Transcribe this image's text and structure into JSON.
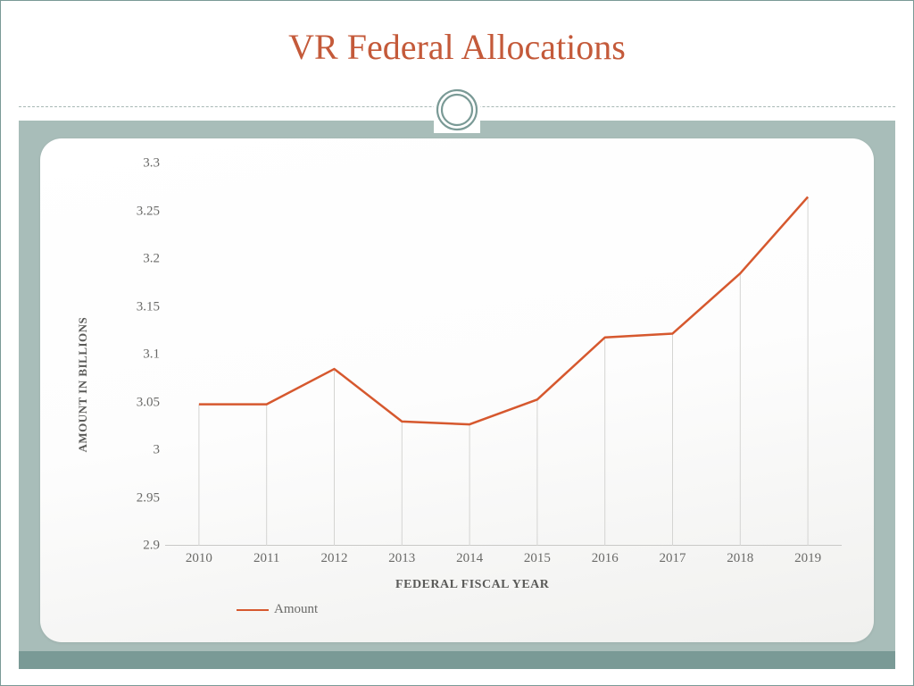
{
  "title": "VR Federal Allocations",
  "chart": {
    "type": "line",
    "x_axis_label": "FEDERAL FISCAL YEAR",
    "y_axis_label": "AMOUNT IN BILLIONS",
    "legend_label": "Amount",
    "categories": [
      "2010",
      "2011",
      "2012",
      "2013",
      "2014",
      "2015",
      "2016",
      "2017",
      "2018",
      "2019"
    ],
    "values": [
      3.048,
      3.048,
      3.085,
      3.03,
      3.027,
      3.053,
      3.118,
      3.122,
      3.185,
      3.265
    ],
    "y_ticks": [
      2.9,
      2.95,
      3.0,
      3.05,
      3.1,
      3.15,
      3.2,
      3.25,
      3.3
    ],
    "y_tick_labels": [
      "2.9",
      "2.95",
      "3",
      "3.05",
      "3.1",
      "3.15",
      "3.2",
      "3.25",
      "3.3"
    ],
    "ylim": [
      2.9,
      3.3
    ],
    "line_color": "#d6582e",
    "line_width": 2.5,
    "drop_line_color": "#d4d4d2",
    "axis_line_color": "#c9c9c7",
    "tick_label_color": "#6a6a68",
    "axis_title_color": "#5a5a58",
    "tick_fontsize": 15,
    "axis_title_fontsize": 13,
    "plot_bg_gradient_top": "#ffffff",
    "plot_bg_gradient_bottom": "#f0f0ee",
    "ornament_outer_stroke": "#7a9a96",
    "ornament_inner_stroke": "#7a9a96"
  },
  "layout": {
    "outer_border_color": "#7a9a96",
    "band_color": "#a8bdb9",
    "band_bottom_color": "#7a9a96",
    "divider_color": "#a8b8b5",
    "title_color": "#c45a3a",
    "title_fontsize": 40
  }
}
